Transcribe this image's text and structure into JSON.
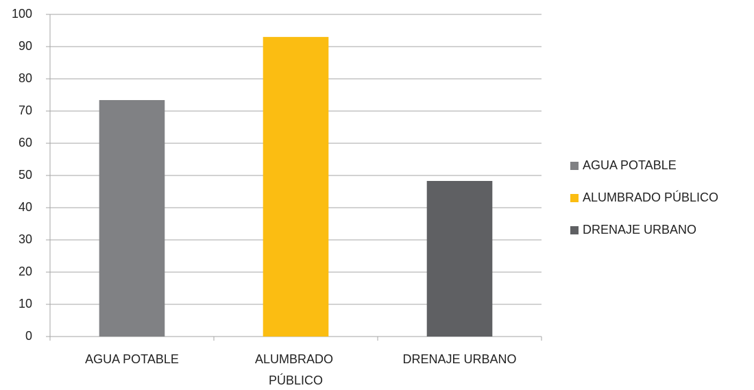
{
  "chart_data": {
    "type": "bar",
    "categories": [
      "AGUA POTABLE",
      "ALUMBRADO PÚBLICO",
      "DRENAJE URBANO"
    ],
    "values": [
      73.4,
      93,
      48.3
    ],
    "colors": [
      "#808184",
      "#fbbd12",
      "#5f6063"
    ],
    "ylim": [
      0,
      100
    ],
    "yticks": [
      0,
      10,
      20,
      30,
      40,
      50,
      60,
      70,
      80,
      90,
      100
    ],
    "grid": true,
    "legend": "right"
  }
}
